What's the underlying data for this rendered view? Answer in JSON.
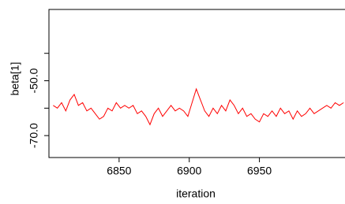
{
  "chart_data": {
    "type": "line",
    "y_label": "beta[1]",
    "x_label": "iteration",
    "x": [
      6803,
      6806,
      6809,
      6812,
      6815,
      6818,
      6821,
      6824,
      6827,
      6830,
      6833,
      6836,
      6839,
      6842,
      6845,
      6848,
      6851,
      6854,
      6857,
      6860,
      6863,
      6866,
      6869,
      6872,
      6875,
      6878,
      6881,
      6884,
      6887,
      6890,
      6893,
      6896,
      6899,
      6902,
      6905,
      6908,
      6911,
      6914,
      6917,
      6920,
      6923,
      6926,
      6929,
      6932,
      6935,
      6938,
      6941,
      6944,
      6947,
      6950,
      6953,
      6956,
      6959,
      6962,
      6965,
      6968,
      6971,
      6974,
      6977,
      6980,
      6983,
      6986,
      6989,
      6992,
      6995,
      6998,
      7001,
      7004,
      7007,
      7010
    ],
    "series": [
      {
        "color": "#ff0000",
        "values": [
          -59,
          -60,
          -58,
          -61,
          -57,
          -55,
          -59,
          -58,
          -61,
          -60,
          -62,
          -64,
          -63,
          -60,
          -61,
          -58,
          -60,
          -59,
          -60,
          -59,
          -62,
          -61,
          -63,
          -66,
          -62,
          -60,
          -63,
          -61,
          -59,
          -61,
          -60,
          -61,
          -63,
          -58,
          -53,
          -57,
          -61,
          -63,
          -60,
          -62,
          -59,
          -61,
          -57,
          -59,
          -62,
          -60,
          -63,
          -62,
          -64,
          -65,
          -62,
          -63,
          -61,
          -63,
          -60,
          -62,
          -61,
          -64,
          -61,
          -63,
          -62,
          -60,
          -62,
          -61,
          -60,
          -59,
          -60,
          -58,
          -59,
          -58
        ]
      }
    ],
    "xlim": [
      6800,
      7011
    ],
    "xticks": [
      6850,
      6900,
      6950
    ],
    "ylim": [
      -78,
      -24
    ],
    "yticks": [
      {
        "value": -70,
        "label": "-70.0"
      },
      {
        "value": -50,
        "label": "-50.0"
      }
    ],
    "y_minor_ticks": [
      -60,
      -40
    ]
  }
}
